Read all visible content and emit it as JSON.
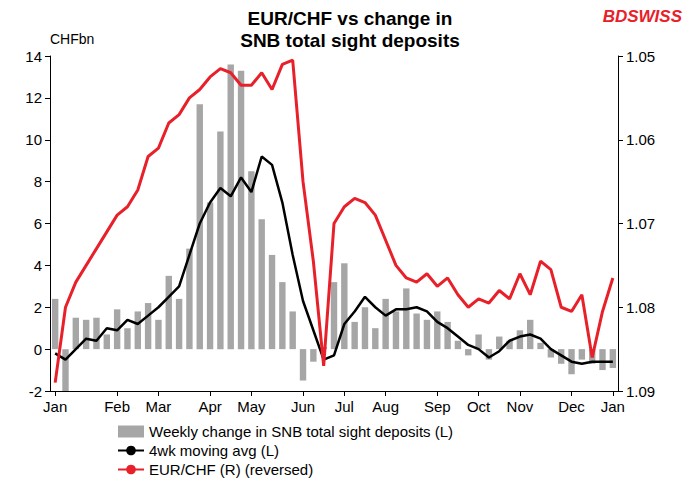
{
  "chart_data": {
    "type": "bar",
    "title": "EUR/CHF vs change in\nSNB total sight deposits",
    "ylabel": "CHFbn",
    "annotations": [
      "BDSWISS"
    ],
    "categories": [
      "Jan",
      null,
      null,
      null,
      null,
      null,
      "Feb",
      null,
      null,
      null,
      "Mar",
      null,
      null,
      null,
      null,
      "Apr",
      null,
      null,
      null,
      "May",
      null,
      null,
      null,
      null,
      "Jun",
      null,
      null,
      null,
      "Jul",
      null,
      null,
      null,
      "Aug",
      null,
      null,
      null,
      null,
      "Sep",
      null,
      null,
      null,
      "Oct",
      null,
      null,
      null,
      "Nov",
      null,
      null,
      null,
      null,
      "Dec",
      null,
      null,
      null,
      "Jan"
    ],
    "series": [
      {
        "name": "Weekly change in SNB total sight deposits (L)",
        "type": "bar",
        "color": "#a6a6a6",
        "values": [
          2.4,
          -2.0,
          1.5,
          1.4,
          1.5,
          0.7,
          1.9,
          1.0,
          1.8,
          2.2,
          1.4,
          3.5,
          2.4,
          4.8,
          11.7,
          7.0,
          10.4,
          13.6,
          13.3,
          8.5,
          6.2,
          4.5,
          3.2,
          1.8,
          -1.5,
          -0.6,
          0.1,
          3.2,
          4.1,
          1.3,
          2.0,
          1.0,
          2.4,
          1.8,
          2.9,
          1.7,
          1.4,
          1.8,
          1.3,
          0.4,
          -0.3,
          0.7,
          -0.5,
          0.6,
          0.4,
          0.9,
          1.4,
          0.3,
          -0.4,
          -0.7,
          -1.2,
          -0.5,
          -0.7,
          -1.0,
          -0.9
        ]
      },
      {
        "name": "4wk moving avg (L)",
        "type": "line",
        "color": "#000000",
        "values": [
          -0.2,
          -0.5,
          0.0,
          0.5,
          0.4,
          1.0,
          0.9,
          1.4,
          1.2,
          1.6,
          2.0,
          2.5,
          3.0,
          4.5,
          6.0,
          7.0,
          7.7,
          7.3,
          8.2,
          7.5,
          9.2,
          8.8,
          7.0,
          4.5,
          2.3,
          0.9,
          -0.5,
          -0.3,
          1.2,
          1.8,
          2.5,
          2.0,
          1.6,
          1.9,
          1.9,
          2.0,
          1.8,
          1.3,
          1.0,
          0.6,
          0.2,
          0.0,
          -0.4,
          -0.1,
          0.4,
          0.6,
          0.7,
          0.5,
          0.0,
          -0.3,
          -0.6,
          -0.7,
          -0.6,
          -0.6,
          -0.6
        ]
      },
      {
        "name": "EUR/CHF (R) (reversed)",
        "type": "line",
        "color": "#e8202a",
        "axis": "y2",
        "values": [
          1.089,
          1.08,
          1.077,
          1.075,
          1.073,
          1.071,
          1.069,
          1.068,
          1.066,
          1.062,
          1.061,
          1.058,
          1.057,
          1.055,
          1.054,
          1.0525,
          1.0515,
          1.052,
          1.0535,
          1.0535,
          1.052,
          1.054,
          1.051,
          1.0505,
          1.065,
          1.0745,
          1.087,
          1.07,
          1.068,
          1.067,
          1.0675,
          1.069,
          1.072,
          1.075,
          1.0765,
          1.077,
          1.076,
          1.0775,
          1.0765,
          1.0785,
          1.08,
          1.079,
          1.0795,
          1.078,
          1.079,
          1.076,
          1.0785,
          1.0745,
          1.0755,
          1.08,
          1.0805,
          1.0785,
          1.086,
          1.0805,
          1.0765
        ]
      }
    ],
    "ylim": [
      -2,
      14
    ],
    "yticks": [
      -2,
      0,
      2,
      4,
      6,
      8,
      10,
      12,
      14
    ],
    "y2lim": [
      1.09,
      1.05
    ],
    "y2ticks": [
      1.05,
      1.06,
      1.07,
      1.08,
      1.09
    ],
    "grid": false,
    "legend": "bottom left"
  }
}
